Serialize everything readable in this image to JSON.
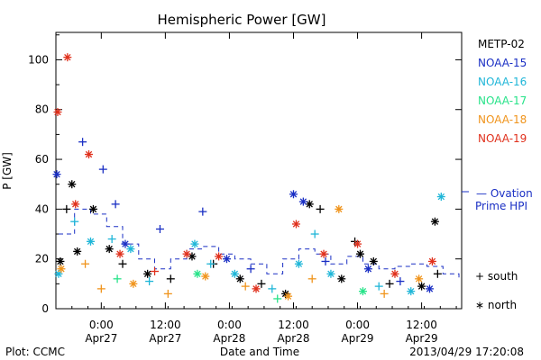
{
  "chart_data": {
    "type": "scatter",
    "title": "Hemispheric Power [GW]",
    "ylabel": "P [GW]",
    "xlabel": "Date and Time",
    "ylim": [
      0,
      111
    ],
    "xlim": [
      "2013-04-26 15:30",
      "2013-04-29 19:30"
    ],
    "y_ticks": [
      "0",
      "20",
      "40",
      "60",
      "80",
      "100"
    ],
    "x_ticks": [
      {
        "x": "2013-04-27 00:00",
        "time": "0:00",
        "date": "Apr27"
      },
      {
        "x": "2013-04-27 12:00",
        "time": "12:00",
        "date": "Apr27"
      },
      {
        "x": "2013-04-28 00:00",
        "time": "0:00",
        "date": "Apr28"
      },
      {
        "x": "2013-04-28 12:00",
        "time": "12:00",
        "date": "Apr28"
      },
      {
        "x": "2013-04-29 00:00",
        "time": "0:00",
        "date": "Apr29"
      },
      {
        "x": "2013-04-29 12:00",
        "time": "12:00",
        "date": "Apr29"
      }
    ],
    "legend_position": "right",
    "series": [
      {
        "name": "METP-02",
        "color": "#000000",
        "points": [
          {
            "x": "2013-04-26 16:20",
            "y": 19,
            "m": "north"
          },
          {
            "x": "2013-04-26 17:30",
            "y": 40,
            "m": "south"
          },
          {
            "x": "2013-04-26 18:30",
            "y": 50,
            "m": "north"
          },
          {
            "x": "2013-04-26 19:30",
            "y": 23,
            "m": "north"
          },
          {
            "x": "2013-04-26 22:30",
            "y": 40,
            "m": "north"
          },
          {
            "x": "2013-04-27 01:30",
            "y": 24,
            "m": "north"
          },
          {
            "x": "2013-04-27 04:00",
            "y": 18,
            "m": "south"
          },
          {
            "x": "2013-04-27 08:40",
            "y": 14,
            "m": "north"
          },
          {
            "x": "2013-04-27 13:00",
            "y": 12,
            "m": "south"
          },
          {
            "x": "2013-04-27 17:00",
            "y": 21,
            "m": "north"
          },
          {
            "x": "2013-04-27 21:00",
            "y": 18,
            "m": "south"
          },
          {
            "x": "2013-04-28 02:00",
            "y": 12,
            "m": "north"
          },
          {
            "x": "2013-04-28 06:00",
            "y": 10,
            "m": "south"
          },
          {
            "x": "2013-04-28 10:30",
            "y": 6,
            "m": "north"
          },
          {
            "x": "2013-04-28 15:00",
            "y": 42,
            "m": "north"
          },
          {
            "x": "2013-04-28 17:00",
            "y": 40,
            "m": "south"
          },
          {
            "x": "2013-04-28 21:00",
            "y": 12,
            "m": "north"
          },
          {
            "x": "2013-04-28 23:30",
            "y": 27,
            "m": "south"
          },
          {
            "x": "2013-04-29 00:30",
            "y": 22,
            "m": "north"
          },
          {
            "x": "2013-04-29 03:00",
            "y": 19,
            "m": "north"
          },
          {
            "x": "2013-04-29 06:00",
            "y": 10,
            "m": "south"
          },
          {
            "x": "2013-04-29 12:00",
            "y": 9,
            "m": "north"
          },
          {
            "x": "2013-04-29 14:30",
            "y": 35,
            "m": "north"
          },
          {
            "x": "2013-04-29 15:00",
            "y": 14,
            "m": "south"
          }
        ]
      },
      {
        "name": "NOAA-15",
        "color": "#1a2fc4",
        "points": [
          {
            "x": "2013-04-26 15:40",
            "y": 54,
            "m": "north"
          },
          {
            "x": "2013-04-26 20:30",
            "y": 67,
            "m": "south"
          },
          {
            "x": "2013-04-27 00:20",
            "y": 56,
            "m": "south"
          },
          {
            "x": "2013-04-27 02:40",
            "y": 42,
            "m": "south"
          },
          {
            "x": "2013-04-27 04:30",
            "y": 26,
            "m": "north"
          },
          {
            "x": "2013-04-27 11:00",
            "y": 32,
            "m": "south"
          },
          {
            "x": "2013-04-27 19:00",
            "y": 39,
            "m": "south"
          },
          {
            "x": "2013-04-27 23:30",
            "y": 20,
            "m": "north"
          },
          {
            "x": "2013-04-28 04:00",
            "y": 16,
            "m": "south"
          },
          {
            "x": "2013-04-28 12:00",
            "y": 46,
            "m": "north"
          },
          {
            "x": "2013-04-28 13:50",
            "y": 43,
            "m": "north"
          },
          {
            "x": "2013-04-28 18:00",
            "y": 19,
            "m": "south"
          },
          {
            "x": "2013-04-29 02:00",
            "y": 16,
            "m": "north"
          },
          {
            "x": "2013-04-29 08:00",
            "y": 11,
            "m": "south"
          },
          {
            "x": "2013-04-29 13:30",
            "y": 8,
            "m": "north"
          }
        ]
      },
      {
        "name": "NOAA-16",
        "color": "#1fb6d8",
        "points": [
          {
            "x": "2013-04-26 16:00",
            "y": 14,
            "m": "north"
          },
          {
            "x": "2013-04-26 19:00",
            "y": 35,
            "m": "south"
          },
          {
            "x": "2013-04-26 22:00",
            "y": 27,
            "m": "north"
          },
          {
            "x": "2013-04-27 02:00",
            "y": 28,
            "m": "south"
          },
          {
            "x": "2013-04-27 05:30",
            "y": 24,
            "m": "north"
          },
          {
            "x": "2013-04-27 09:00",
            "y": 11,
            "m": "south"
          },
          {
            "x": "2013-04-27 17:30",
            "y": 26,
            "m": "north"
          },
          {
            "x": "2013-04-27 20:30",
            "y": 18,
            "m": "south"
          },
          {
            "x": "2013-04-28 01:00",
            "y": 14,
            "m": "north"
          },
          {
            "x": "2013-04-28 08:00",
            "y": 8,
            "m": "south"
          },
          {
            "x": "2013-04-28 13:00",
            "y": 18,
            "m": "north"
          },
          {
            "x": "2013-04-28 16:00",
            "y": 30,
            "m": "south"
          },
          {
            "x": "2013-04-28 19:00",
            "y": 14,
            "m": "north"
          },
          {
            "x": "2013-04-29 04:00",
            "y": 9,
            "m": "south"
          },
          {
            "x": "2013-04-29 10:00",
            "y": 7,
            "m": "north"
          },
          {
            "x": "2013-04-29 15:40",
            "y": 45,
            "m": "north"
          }
        ]
      },
      {
        "name": "NOAA-17",
        "color": "#27e389",
        "points": [
          {
            "x": "2013-04-27 03:00",
            "y": 12,
            "m": "south"
          },
          {
            "x": "2013-04-27 18:00",
            "y": 14,
            "m": "north"
          },
          {
            "x": "2013-04-28 09:00",
            "y": 4,
            "m": "south"
          },
          {
            "x": "2013-04-29 01:00",
            "y": 7,
            "m": "north"
          }
        ]
      },
      {
        "name": "NOAA-18",
        "color": "#f0941c",
        "points": [
          {
            "x": "2013-04-26 16:30",
            "y": 16,
            "m": "north"
          },
          {
            "x": "2013-04-26 21:00",
            "y": 18,
            "m": "south"
          },
          {
            "x": "2013-04-27 00:00",
            "y": 8,
            "m": "south"
          },
          {
            "x": "2013-04-27 06:00",
            "y": 10,
            "m": "north"
          },
          {
            "x": "2013-04-27 12:30",
            "y": 6,
            "m": "south"
          },
          {
            "x": "2013-04-27 19:30",
            "y": 13,
            "m": "north"
          },
          {
            "x": "2013-04-28 03:00",
            "y": 9,
            "m": "south"
          },
          {
            "x": "2013-04-28 11:00",
            "y": 5,
            "m": "north"
          },
          {
            "x": "2013-04-28 15:30",
            "y": 12,
            "m": "south"
          },
          {
            "x": "2013-04-28 20:30",
            "y": 40,
            "m": "north"
          },
          {
            "x": "2013-04-29 05:00",
            "y": 6,
            "m": "south"
          },
          {
            "x": "2013-04-29 11:30",
            "y": 12,
            "m": "north"
          }
        ]
      },
      {
        "name": "NOAA-19",
        "color": "#e0301c",
        "points": [
          {
            "x": "2013-04-26 15:50",
            "y": 79,
            "m": "north"
          },
          {
            "x": "2013-04-26 17:40",
            "y": 101,
            "m": "north"
          },
          {
            "x": "2013-04-26 21:40",
            "y": 62,
            "m": "north"
          },
          {
            "x": "2013-04-26 19:10",
            "y": 42,
            "m": "north"
          },
          {
            "x": "2013-04-27 03:30",
            "y": 22,
            "m": "north"
          },
          {
            "x": "2013-04-27 10:00",
            "y": 15,
            "m": "south"
          },
          {
            "x": "2013-04-27 16:00",
            "y": 22,
            "m": "north"
          },
          {
            "x": "2013-04-27 22:00",
            "y": 21,
            "m": "north"
          },
          {
            "x": "2013-04-28 05:00",
            "y": 8,
            "m": "north"
          },
          {
            "x": "2013-04-28 12:30",
            "y": 34,
            "m": "north"
          },
          {
            "x": "2013-04-28 17:40",
            "y": 22,
            "m": "north"
          },
          {
            "x": "2013-04-29 00:00",
            "y": 26,
            "m": "north"
          },
          {
            "x": "2013-04-29 07:00",
            "y": 14,
            "m": "north"
          },
          {
            "x": "2013-04-29 14:00",
            "y": 19,
            "m": "north"
          }
        ]
      }
    ],
    "ovation": {
      "label_line1": "— Ovation",
      "label_line2": "Prime HPI",
      "color": "#1a2fc4",
      "points": [
        {
          "x": "2013-04-26 16:00",
          "y": 30
        },
        {
          "x": "2013-04-26 19:00",
          "y": 40
        },
        {
          "x": "2013-04-26 22:00",
          "y": 38
        },
        {
          "x": "2013-04-27 01:00",
          "y": 33
        },
        {
          "x": "2013-04-27 04:00",
          "y": 26
        },
        {
          "x": "2013-04-27 07:00",
          "y": 20
        },
        {
          "x": "2013-04-27 10:00",
          "y": 16
        },
        {
          "x": "2013-04-27 13:00",
          "y": 20
        },
        {
          "x": "2013-04-27 16:00",
          "y": 24
        },
        {
          "x": "2013-04-27 19:00",
          "y": 25
        },
        {
          "x": "2013-04-27 22:00",
          "y": 22
        },
        {
          "x": "2013-04-28 01:00",
          "y": 20
        },
        {
          "x": "2013-04-28 04:00",
          "y": 18
        },
        {
          "x": "2013-04-28 07:00",
          "y": 14
        },
        {
          "x": "2013-04-28 10:00",
          "y": 20
        },
        {
          "x": "2013-04-28 13:00",
          "y": 24
        },
        {
          "x": "2013-04-28 16:00",
          "y": 22
        },
        {
          "x": "2013-04-28 19:00",
          "y": 18
        },
        {
          "x": "2013-04-28 22:00",
          "y": 21
        },
        {
          "x": "2013-04-29 01:00",
          "y": 18
        },
        {
          "x": "2013-04-29 04:00",
          "y": 16
        },
        {
          "x": "2013-04-29 07:00",
          "y": 17
        },
        {
          "x": "2013-04-29 10:00",
          "y": 18
        },
        {
          "x": "2013-04-29 13:00",
          "y": 17
        },
        {
          "x": "2013-04-29 16:00",
          "y": 14
        },
        {
          "x": "2013-04-29 19:00",
          "y": 12
        }
      ]
    },
    "marker_key": {
      "south": "+ south",
      "north": "∗ north"
    },
    "footer": {
      "left": "Plot: CCMC",
      "center": "Date and Time",
      "right": "2013/04/29 17:20:08"
    }
  }
}
